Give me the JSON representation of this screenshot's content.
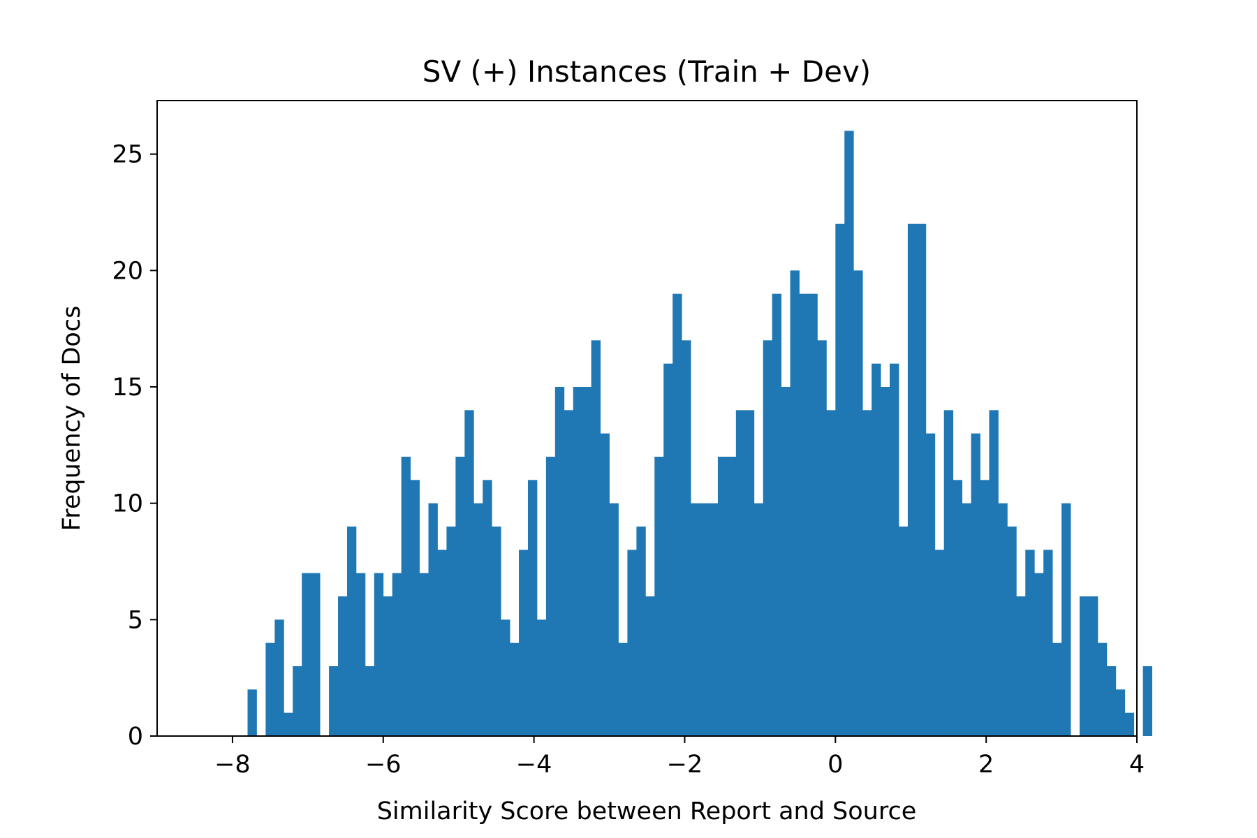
{
  "chart_data": {
    "type": "bar",
    "title": "SV (+) Instances (Train + Dev)",
    "xlabel": "Similarity Score between Report and Source",
    "ylabel": "Frequency of Docs",
    "xlim": [
      -9,
      4
    ],
    "ylim": [
      0,
      27.3
    ],
    "xticks": [
      -8,
      -6,
      -4,
      -2,
      0,
      2,
      4
    ],
    "xtick_labels": [
      "−8",
      "−6",
      "−4",
      "−2",
      "0",
      "2",
      "4"
    ],
    "yticks": [
      0,
      5,
      10,
      15,
      20,
      25
    ],
    "ytick_labels": [
      "0",
      "5",
      "10",
      "15",
      "20",
      "25"
    ],
    "bin_start": -7.8,
    "bin_width": 0.12,
    "values": [
      2,
      0,
      4,
      5,
      1,
      3,
      7,
      7,
      0,
      3,
      6,
      9,
      7,
      3,
      7,
      6,
      7,
      12,
      11,
      7,
      10,
      8,
      9,
      12,
      14,
      10,
      11,
      9,
      5,
      4,
      8,
      11,
      5,
      12,
      15,
      14,
      15,
      15,
      17,
      13,
      10,
      4,
      8,
      9,
      6,
      12,
      16,
      19,
      17,
      10,
      10,
      10,
      12,
      12,
      14,
      14,
      10,
      17,
      19,
      15,
      20,
      19,
      19,
      17,
      14,
      22,
      26,
      20,
      14,
      16,
      15,
      16,
      9,
      22,
      22,
      13,
      8,
      14,
      11,
      10,
      13,
      11,
      14,
      10,
      9,
      6,
      8,
      7,
      8,
      4,
      10,
      0,
      6,
      6,
      4,
      3,
      2,
      1,
      0,
      3
    ],
    "bar_color": "#1f77b4",
    "grid": false,
    "legend": "none"
  }
}
